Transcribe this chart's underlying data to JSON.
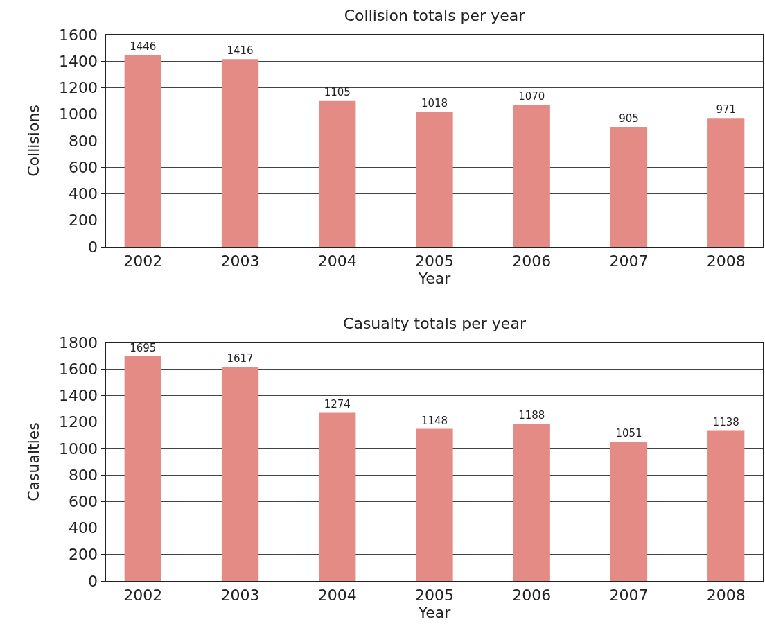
{
  "chart_data": [
    {
      "type": "bar",
      "title": "Collision totals per year",
      "xlabel": "Year",
      "ylabel": "Collisions",
      "categories": [
        "2002",
        "2003",
        "2004",
        "2005",
        "2006",
        "2007",
        "2008"
      ],
      "values": [
        1446,
        1416,
        1105,
        1018,
        1070,
        905,
        971
      ],
      "color": "#e48b86",
      "ylim": [
        0,
        1600
      ],
      "yticks": [
        0,
        200,
        400,
        600,
        800,
        1000,
        1200,
        1400,
        1600
      ],
      "grid": "y",
      "data_labels": true
    },
    {
      "type": "bar",
      "title": "Casualty totals per year",
      "xlabel": "Year",
      "ylabel": "Casualties",
      "categories": [
        "2002",
        "2003",
        "2004",
        "2005",
        "2006",
        "2007",
        "2008"
      ],
      "values": [
        1695,
        1617,
        1274,
        1148,
        1188,
        1051,
        1138
      ],
      "color": "#e48b86",
      "ylim": [
        0,
        1800
      ],
      "yticks": [
        0,
        200,
        400,
        600,
        800,
        1000,
        1200,
        1400,
        1600,
        1800
      ],
      "grid": "y",
      "data_labels": true
    }
  ]
}
